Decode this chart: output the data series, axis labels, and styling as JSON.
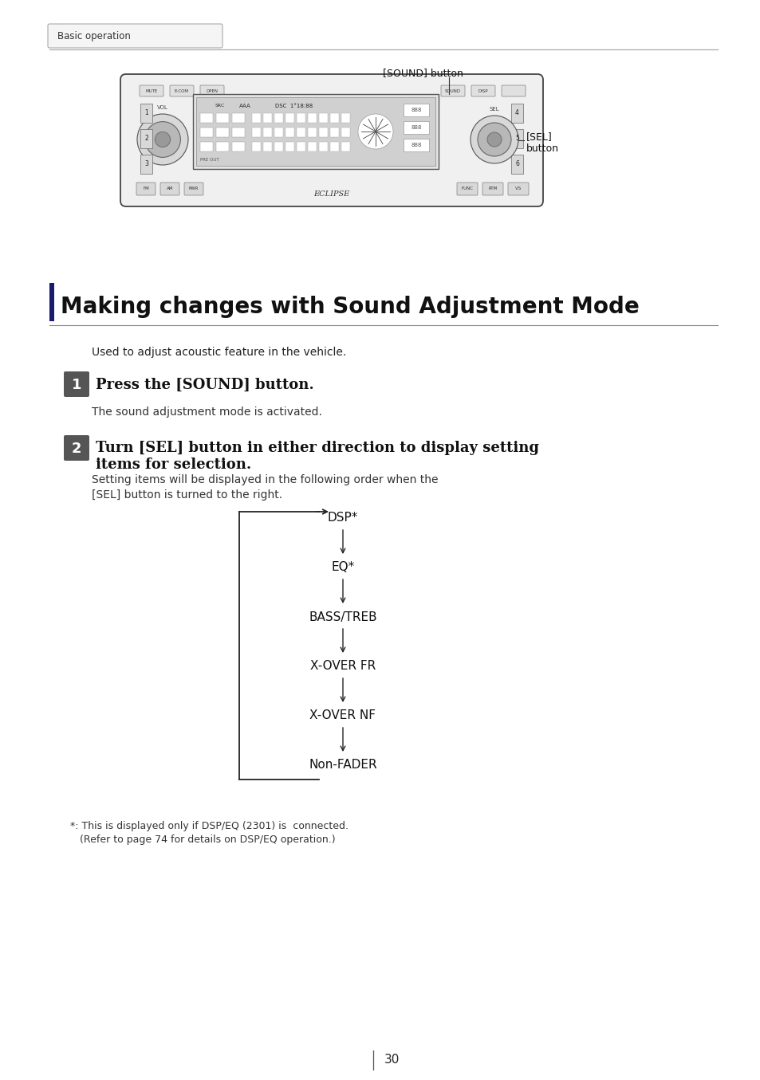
{
  "page_bg": "#ffffff",
  "header_tab_text": "Basic operation",
  "header_tab_color": "#f5f5f5",
  "header_tab_border": "#aaaaaa",
  "header_line_color": "#aaaaaa",
  "sound_button_label": "[SOUND] button",
  "sel_button_label": "[SEL]\nbutton",
  "section_title": "Making changes with Sound Adjustment Mode",
  "section_title_color": "#111111",
  "sidebar_color": "#1a1a6e",
  "intro_text": "Used to adjust acoustic feature in the vehicle.",
  "step1_num": "1",
  "step1_text": "Press the [SOUND] button.",
  "step1_sub": "The sound adjustment mode is activated.",
  "step2_num": "2",
  "step2_line1": "Turn [SEL] button in either direction to display setting",
  "step2_line2": "items for selection.",
  "step2_sub1": "Setting items will be displayed in the following order when the",
  "step2_sub2": "[SEL] button is turned to the right.",
  "flow_items": [
    "DSP*",
    "EQ*",
    "BASS/TREB",
    "X-OVER FR",
    "X-OVER NF",
    "Non-FADER"
  ],
  "footnote_line1": "*: This is displayed only if DSP/EQ (2301) is  connected.",
  "footnote_line2": "   (Refer to page 74 for details on DSP/EQ operation.)",
  "page_number": "30",
  "step_badge_color": "#555555",
  "step_text_color": "#ffffff"
}
